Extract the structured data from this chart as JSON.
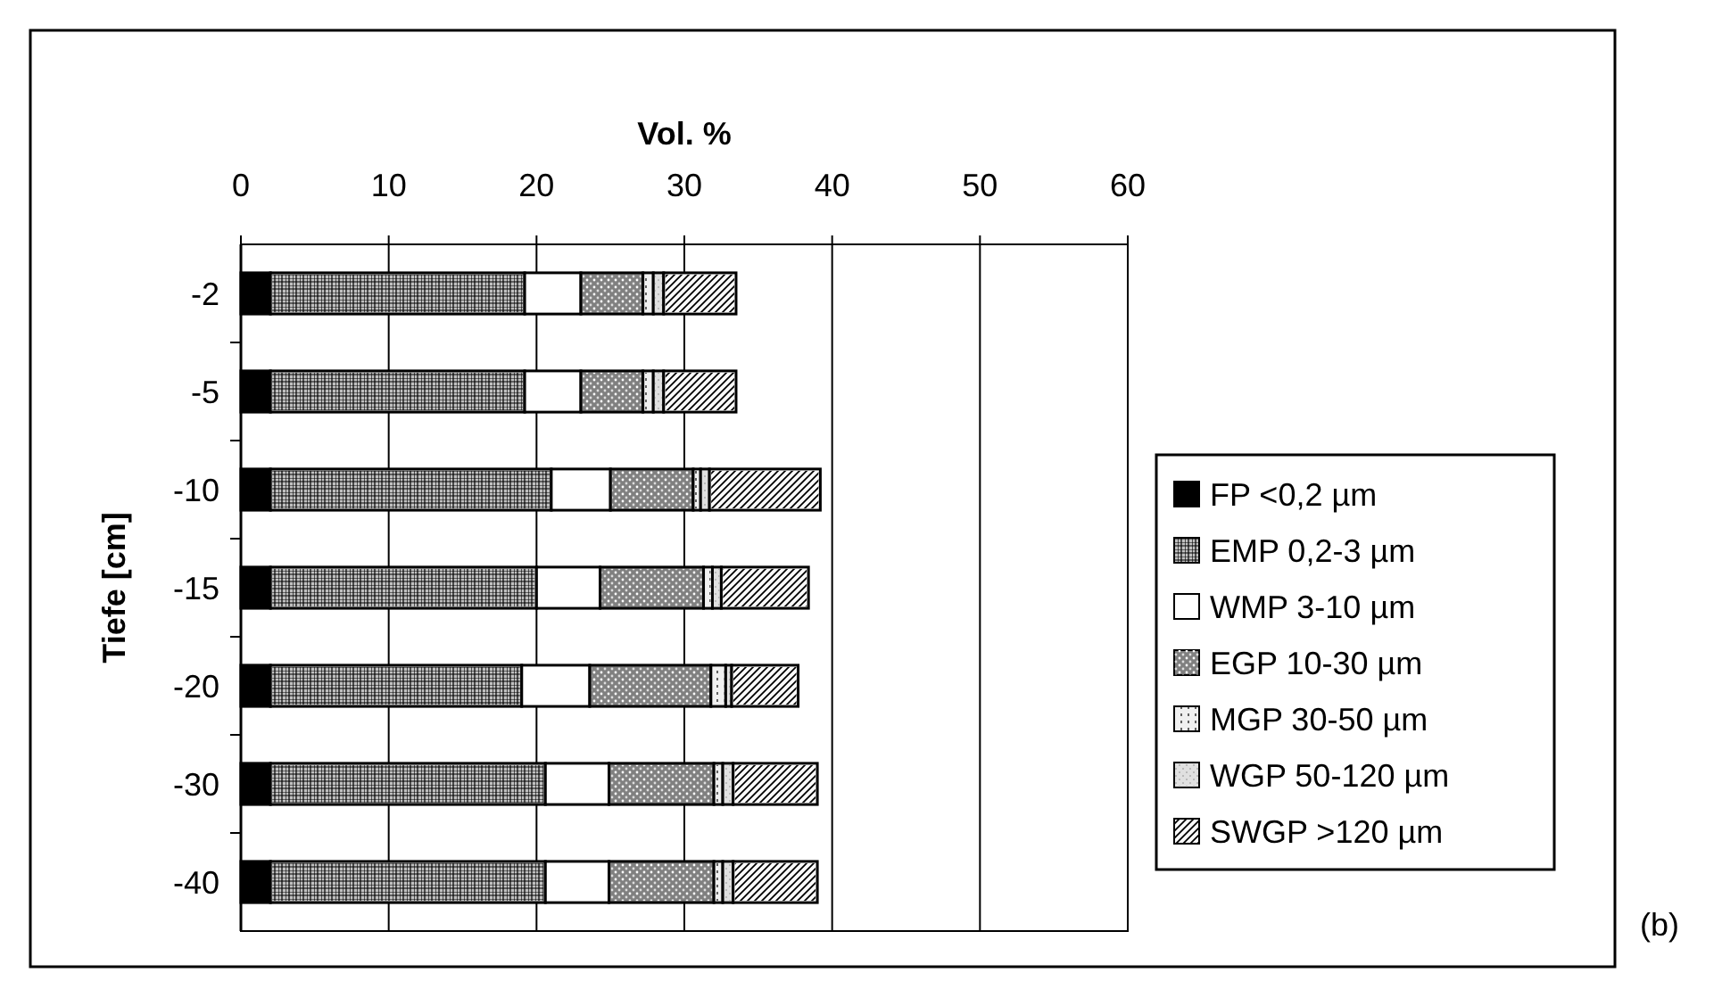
{
  "chart_data": {
    "type": "bar",
    "orientation": "horizontal",
    "stacked": true,
    "xlabel": "Vol. %",
    "ylabel": "Tiefe [cm]",
    "categories": [
      "-2",
      "-5",
      "-10",
      "-15",
      "-20",
      "-30",
      "-40"
    ],
    "xlim": [
      0,
      60
    ],
    "xticks": [
      0,
      10,
      20,
      30,
      40,
      50,
      60
    ],
    "grid": "x",
    "legend": "right",
    "annotations": [
      "(b)"
    ],
    "series": [
      {
        "name": "FP <0,2 µm",
        "color": "#000000",
        "values": [
          2.0,
          2.0,
          2.0,
          2.0,
          2.0,
          2.0,
          2.0
        ]
      },
      {
        "name": "EMP 0,2-3 µm",
        "color": "#c0c0c0",
        "values": [
          17.2,
          17.2,
          19.0,
          18.0,
          17.0,
          18.6,
          18.6
        ]
      },
      {
        "name": "WMP 3-10 µm",
        "color": "#ffffff",
        "values": [
          3.8,
          3.8,
          4.0,
          4.3,
          4.6,
          4.3,
          4.3
        ]
      },
      {
        "name": "EGP 10-30 µm",
        "color": "#808080",
        "values": [
          4.2,
          4.2,
          5.6,
          7.0,
          8.2,
          7.1,
          7.1
        ]
      },
      {
        "name": "MGP 30-50 µm",
        "color": "#f0f0f0",
        "values": [
          0.7,
          0.7,
          0.5,
          0.6,
          1.0,
          0.6,
          0.6
        ]
      },
      {
        "name": "WGP 50-120 µm",
        "color": "#e0e0e0",
        "values": [
          0.7,
          0.7,
          0.6,
          0.6,
          0.4,
          0.7,
          0.7
        ]
      },
      {
        "name": "SWGP >120 µm",
        "color": "#fafafa",
        "values": [
          4.9,
          4.9,
          7.5,
          5.9,
          4.5,
          5.7,
          5.7
        ]
      }
    ]
  }
}
